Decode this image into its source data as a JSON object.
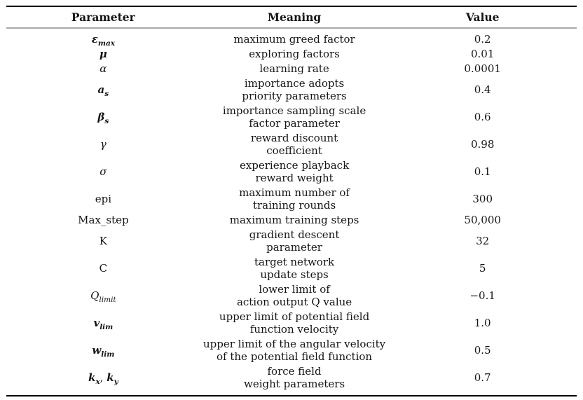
{
  "page": {
    "background": "#ffffff",
    "text_color": "#151515"
  },
  "rules": {
    "outer_color": "#000000",
    "header_separator_color": "#a9a9a9"
  },
  "table": {
    "headers": [
      "Parameter",
      "Meaning",
      "Value"
    ],
    "rows": [
      {
        "param": [
          {
            "t": "ε",
            "i": true,
            "b": true
          },
          {
            "t": "max",
            "sub": true,
            "i": true,
            "b": true
          }
        ],
        "meaning": "maximum greed factor",
        "value": "0.2"
      },
      {
        "param": [
          {
            "t": "μ",
            "i": true,
            "b": true
          }
        ],
        "meaning": "exploring factors",
        "value": "0.01"
      },
      {
        "param": [
          {
            "t": "α",
            "i": true
          }
        ],
        "meaning": "learning rate",
        "value": "0.0001"
      },
      {
        "param": [
          {
            "t": "a",
            "i": true,
            "b": true
          },
          {
            "t": "s",
            "sub": true,
            "i": true,
            "b": true
          }
        ],
        "meaning": "importance adopts\npriority parameters",
        "value": "0.4"
      },
      {
        "param": [
          {
            "t": "β",
            "i": true,
            "b": true
          },
          {
            "t": "s",
            "sub": true,
            "i": true,
            "b": true
          }
        ],
        "meaning": "importance sampling scale\nfactor parameter",
        "value": "0.6"
      },
      {
        "param": [
          {
            "t": "γ",
            "i": true
          }
        ],
        "meaning": "reward discount\ncoefficient",
        "value": "0.98"
      },
      {
        "param": [
          {
            "t": "σ",
            "i": true
          }
        ],
        "meaning": "experience playback\nreward weight",
        "value": "0.1"
      },
      {
        "param": [
          {
            "t": "epi"
          }
        ],
        "meaning": "maximum number of\ntraining rounds",
        "value": "300"
      },
      {
        "param": [
          {
            "t": "Max_step"
          }
        ],
        "meaning": "maximum training steps",
        "value": "50,000"
      },
      {
        "param": [
          {
            "t": "K"
          }
        ],
        "meaning": "gradient descent\nparameter",
        "value": "32"
      },
      {
        "param": [
          {
            "t": "C"
          }
        ],
        "meaning": "target network\nupdate steps",
        "value": "5"
      },
      {
        "param": [
          {
            "t": "Q",
            "i": true
          },
          {
            "t": "limit",
            "sub": true,
            "i": true
          }
        ],
        "meaning": "lower limit of\naction output Q value",
        "value": "−0.1"
      },
      {
        "param": [
          {
            "t": "v",
            "i": true,
            "b": true
          },
          {
            "t": "lim",
            "sub": true,
            "i": true,
            "b": true
          }
        ],
        "meaning": "upper limit of potential field\nfunction velocity",
        "value": "1.0"
      },
      {
        "param": [
          {
            "t": "w",
            "i": true,
            "b": true
          },
          {
            "t": "lim",
            "sub": true,
            "i": true,
            "b": true
          }
        ],
        "meaning": "upper limit of the angular velocity\nof the potential field function",
        "value": "0.5"
      },
      {
        "param": [
          {
            "t": "k",
            "i": true,
            "b": true
          },
          {
            "t": "x",
            "sub": true,
            "i": true,
            "b": true
          },
          {
            "t": ", "
          },
          {
            "t": "k",
            "i": true,
            "b": true
          },
          {
            "t": "y",
            "sub": true,
            "i": true,
            "b": true
          }
        ],
        "meaning": "force field\nweight parameters",
        "value": "0.7"
      }
    ]
  }
}
